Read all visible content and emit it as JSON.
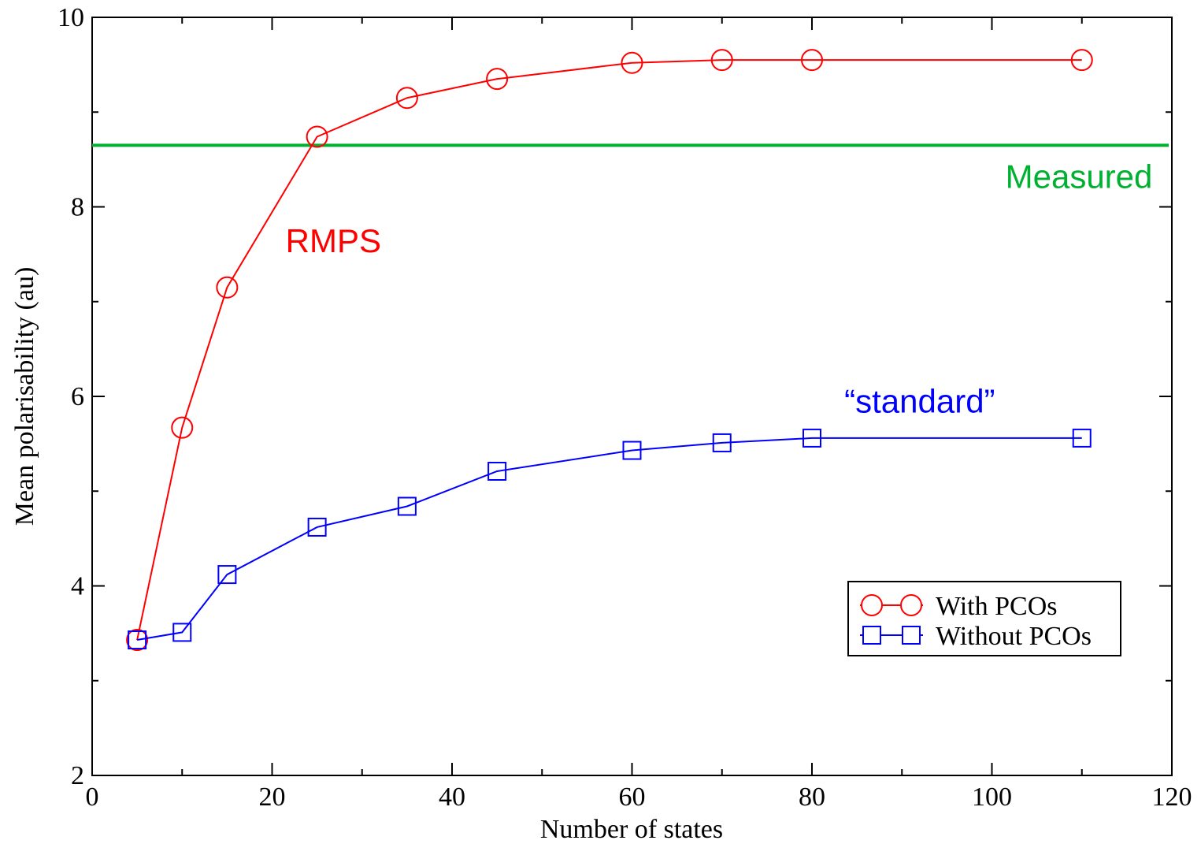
{
  "colors": {
    "with_pcos": "#ff0000",
    "without_pcos": "#0000ff",
    "measured": "#00b030",
    "axis": "#000000"
  },
  "chart_data": {
    "type": "line",
    "xlabel": "Number of states",
    "ylabel": "Mean polarisability (au)",
    "xlim": [
      0,
      120
    ],
    "ylim": [
      2,
      10
    ],
    "x_ticks": [
      0,
      20,
      40,
      60,
      80,
      100,
      120
    ],
    "y_ticks": [
      2,
      4,
      6,
      8,
      10
    ],
    "x_tick_labels": [
      "0",
      "20",
      "40",
      "60",
      "80",
      "100",
      "120"
    ],
    "y_tick_labels": [
      "2",
      "4",
      "6",
      "8",
      "10"
    ],
    "grid": false,
    "legend_position": "lower-right",
    "series": [
      {
        "name": "With PCOs",
        "marker": "circle",
        "color": "#ff0000",
        "x": [
          5,
          10,
          15,
          25,
          35,
          45,
          60,
          70,
          80,
          110
        ],
        "y": [
          3.43,
          5.67,
          7.15,
          8.74,
          9.15,
          9.35,
          9.52,
          9.55,
          9.55,
          9.55
        ]
      },
      {
        "name": "Without PCOs",
        "marker": "square",
        "color": "#0000ff",
        "x": [
          5,
          10,
          15,
          25,
          35,
          45,
          60,
          70,
          80,
          110
        ],
        "y": [
          3.43,
          3.51,
          4.12,
          4.62,
          4.84,
          5.21,
          5.43,
          5.51,
          5.56,
          5.56
        ]
      }
    ],
    "reference_line": {
      "y": 8.65,
      "color": "#00b030"
    },
    "annotations": [
      {
        "text": "Measured",
        "x": 101.5,
        "y": 8.2,
        "color": "#00b030"
      },
      {
        "text": "RMPS",
        "x": 21.5,
        "y": 7.52,
        "color": "#ff0000"
      },
      {
        "text": "“standard”",
        "x": 83.6,
        "y": 5.83,
        "color": "#0000ff"
      }
    ]
  }
}
